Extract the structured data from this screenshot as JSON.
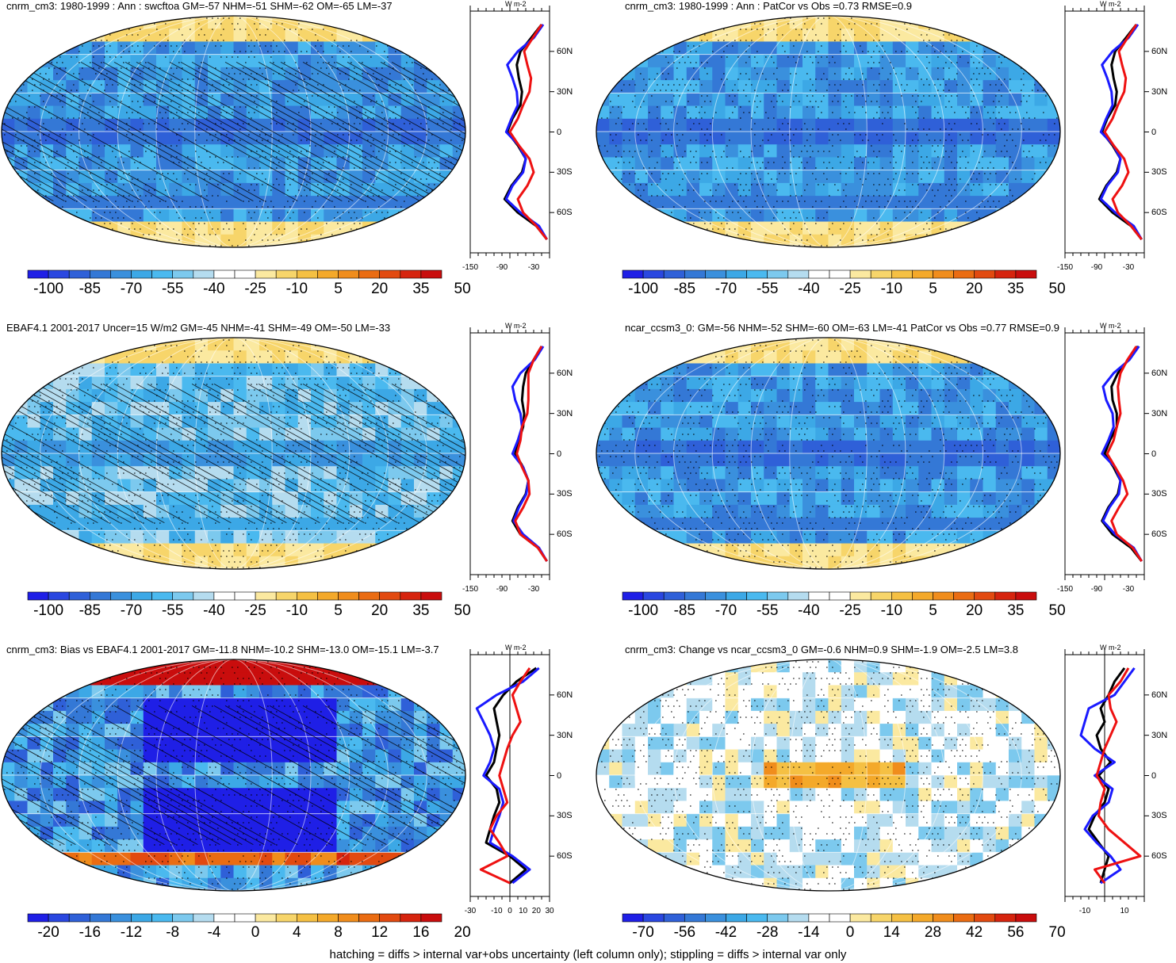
{
  "footnote": "hatching = diffs > internal var+obs uncertainty (left column only); stippling = diffs > internal var only",
  "colors": {
    "palette_neg": [
      "#1f1fe6",
      "#2a47e0",
      "#2f60d8",
      "#3478d6",
      "#3a90dd",
      "#3ca8e6",
      "#4ab9ef",
      "#7cc9ee",
      "#b5dcef"
    ],
    "white": "#ffffff",
    "palette_pos": [
      "#fbe9a0",
      "#f7d56a",
      "#f5c043",
      "#f4a92a",
      "#f08d1c",
      "#ea6c12",
      "#e24a10",
      "#d6240e",
      "#c90d0d"
    ],
    "model_line": "#000000",
    "obs_line": "#1a1aff",
    "diff_line": "#ee1111"
  },
  "panels": [
    {
      "title": "cnrm_cm3: 1980-1999 : Ann : swcftoa GM=-57 NHM=-51 SHM=-62 OM=-65 LM=-37",
      "colorbar_labels": [
        "-100",
        "-85",
        "-70",
        "-55",
        "-40",
        "-25",
        "-10",
        "5",
        "20",
        "35",
        "50"
      ],
      "profile_unit": "W m-2",
      "profile_xticks": [
        "-150",
        "-90",
        "-30"
      ],
      "profile_yticks": [
        "60N",
        "30N",
        "0",
        "30S",
        "60S"
      ],
      "map_tone": "neg-strong",
      "hatched": true
    },
    {
      "title": "cnrm_cm3: 1980-1999 : Ann : PatCor vs Obs =0.73 RMSE=0.9",
      "colorbar_labels": [
        "-100",
        "-85",
        "-70",
        "-55",
        "-40",
        "-25",
        "-10",
        "5",
        "20",
        "35",
        "50"
      ],
      "profile_unit": "W m-2",
      "profile_xticks": [
        "-150",
        "-90",
        "-30"
      ],
      "profile_yticks": [
        "60N",
        "30N",
        "0",
        "30S",
        "60S"
      ],
      "map_tone": "neg-strong",
      "hatched": false
    },
    {
      "title": "EBAF4.1 2001-2017 Uncer=15 W/m2 GM=-45 NHM=-41 SHM=-49 OM=-50 LM=-33",
      "colorbar_labels": [
        "-100",
        "-85",
        "-70",
        "-55",
        "-40",
        "-25",
        "-10",
        "5",
        "20",
        "35",
        "50"
      ],
      "profile_unit": "W m-2",
      "profile_xticks": [
        "-150",
        "-90",
        "-30"
      ],
      "profile_yticks": [
        "60N",
        "30N",
        "0",
        "30S",
        "60S"
      ],
      "map_tone": "neg-mid",
      "hatched": true
    },
    {
      "title": "ncar_ccsm3_0: GM=-56 NHM=-52 SHM=-60 OM=-63 LM=-41 PatCor vs Obs =0.77 RMSE=0.9",
      "colorbar_labels": [
        "-100",
        "-85",
        "-70",
        "-55",
        "-40",
        "-25",
        "-10",
        "5",
        "20",
        "35",
        "50"
      ],
      "profile_unit": "W m-2",
      "profile_xticks": [
        "-150",
        "-90",
        "-30"
      ],
      "profile_yticks": [
        "60N",
        "30N",
        "0",
        "30S",
        "60S"
      ],
      "map_tone": "neg-strong",
      "hatched": false
    },
    {
      "title": "cnrm_cm3: Bias vs EBAF4.1 2001-2017 GM=-11.8 NHM=-10.2 SHM=-13.0 OM=-15.1 LM=-3.7",
      "colorbar_labels": [
        "-20",
        "-16",
        "-12",
        "-8",
        "-4",
        "0",
        "4",
        "8",
        "12",
        "16",
        "20"
      ],
      "profile_unit": "W m-2",
      "profile_xticks": [
        "-30",
        "-10",
        "0",
        "10",
        "20",
        "30"
      ],
      "profile_yticks": [
        "60N",
        "30N",
        "0",
        "30S",
        "60S"
      ],
      "map_tone": "bias",
      "hatched": true
    },
    {
      "title": "cnrm_cm3: Change vs ncar_ccsm3_0 GM=-0.6 NHM=0.9 SHM=-1.9 OM=-2.5 LM=3.8",
      "colorbar_labels": [
        "-70",
        "-56",
        "-42",
        "-28",
        "-14",
        "0",
        "14",
        "28",
        "42",
        "56",
        "70"
      ],
      "profile_unit": "W m-2",
      "profile_xticks": [
        "-10",
        "10"
      ],
      "profile_yticks": [
        "60N",
        "30N",
        "0",
        "30S",
        "60S"
      ],
      "map_tone": "change",
      "hatched": false
    }
  ],
  "chart_data": {
    "type": "heatmap",
    "variable": "swcftoa",
    "season": "Ann",
    "panels": [
      {
        "name": "cnrm_cm3 1980-1999",
        "GM": -57,
        "NHM": -51,
        "SHM": -62,
        "OM": -65,
        "LM": -37
      },
      {
        "name": "cnrm_cm3 1980-1999 PatCor vs Obs",
        "PatCor": 0.73,
        "RMSE": 0.9
      },
      {
        "name": "EBAF4.1 2001-2017",
        "Uncer": 15,
        "GM": -45,
        "NHM": -41,
        "SHM": -49,
        "OM": -50,
        "LM": -33
      },
      {
        "name": "ncar_ccsm3_0",
        "GM": -56,
        "NHM": -52,
        "SHM": -60,
        "OM": -63,
        "LM": -41,
        "PatCor": 0.77,
        "RMSE": 0.9
      },
      {
        "name": "cnrm_cm3 Bias vs EBAF4.1 2001-2017",
        "GM": -11.8,
        "NHM": -10.2,
        "SHM": -13.0,
        "OM": -15.1,
        "LM": -3.7
      },
      {
        "name": "cnrm_cm3 Change vs ncar_ccsm3_0",
        "GM": -0.6,
        "NHM": 0.9,
        "SHM": -1.9,
        "OM": -2.5,
        "LM": 3.8
      }
    ],
    "zonal_profiles": {
      "lat": [
        80,
        70,
        60,
        50,
        40,
        30,
        20,
        10,
        0,
        -10,
        -20,
        -30,
        -40,
        -50,
        -60,
        -70,
        -80
      ],
      "panels": [
        {
          "series": [
            {
              "color": "black",
              "values": [
                -15,
                -35,
                -55,
                -62,
                -58,
                -52,
                -55,
                -70,
                -80,
                -60,
                -45,
                -52,
                -72,
                -85,
                -60,
                -25,
                -5
              ]
            },
            {
              "color": "blue",
              "values": [
                -12,
                -30,
                -60,
                -80,
                -70,
                -62,
                -60,
                -72,
                -82,
                -58,
                -45,
                -50,
                -70,
                -82,
                -55,
                -20,
                -5
              ]
            },
            {
              "color": "red",
              "values": [
                -15,
                -32,
                -48,
                -42,
                -35,
                -38,
                -50,
                -60,
                -75,
                -58,
                -38,
                -30,
                -42,
                -60,
                -50,
                -25,
                -5
              ]
            }
          ]
        },
        {
          "series": [
            {
              "color": "black",
              "values": [
                -15,
                -35,
                -55,
                -62,
                -58,
                -52,
                -55,
                -70,
                -80,
                -60,
                -45,
                -52,
                -72,
                -85,
                -60,
                -25,
                -5
              ]
            },
            {
              "color": "blue",
              "values": [
                -12,
                -30,
                -60,
                -80,
                -70,
                -62,
                -60,
                -72,
                -82,
                -58,
                -45,
                -50,
                -70,
                -82,
                -55,
                -20,
                -5
              ]
            },
            {
              "color": "red",
              "values": [
                -15,
                -32,
                -48,
                -42,
                -35,
                -38,
                -50,
                -60,
                -75,
                -58,
                -38,
                -30,
                -42,
                -60,
                -50,
                -25,
                -5
              ]
            }
          ]
        },
        {
          "series": [
            {
              "color": "black",
              "values": [
                -15,
                -30,
                -45,
                -50,
                -52,
                -48,
                -50,
                -58,
                -65,
                -50,
                -40,
                -45,
                -60,
                -70,
                -55,
                -22,
                -5
              ]
            },
            {
              "color": "blue",
              "values": [
                -12,
                -28,
                -55,
                -70,
                -65,
                -55,
                -52,
                -60,
                -70,
                -50,
                -40,
                -44,
                -58,
                -68,
                -50,
                -20,
                -5
              ]
            },
            {
              "color": "red",
              "values": [
                -15,
                -30,
                -40,
                -40,
                -40,
                -42,
                -52,
                -55,
                -62,
                -52,
                -40,
                -38,
                -50,
                -65,
                -55,
                -22,
                -5
              ]
            }
          ]
        },
        {
          "series": [
            {
              "color": "black",
              "values": [
                -12,
                -30,
                -50,
                -62,
                -60,
                -52,
                -52,
                -65,
                -75,
                -58,
                -45,
                -50,
                -68,
                -80,
                -60,
                -25,
                -5
              ]
            },
            {
              "color": "blue",
              "values": [
                -10,
                -28,
                -58,
                -78,
                -72,
                -60,
                -58,
                -68,
                -80,
                -55,
                -45,
                -48,
                -66,
                -78,
                -55,
                -20,
                -5
              ]
            },
            {
              "color": "red",
              "values": [
                -15,
                -32,
                -45,
                -50,
                -48,
                -45,
                -52,
                -58,
                -70,
                -55,
                -40,
                -32,
                -48,
                -62,
                -52,
                -22,
                -5
              ]
            }
          ]
        },
        {
          "series": [
            {
              "color": "black",
              "values": [
                20,
                5,
                -5,
                -12,
                -10,
                -8,
                -10,
                -12,
                -18,
                -10,
                -8,
                -12,
                -15,
                -18,
                0,
                12,
                0
              ]
            },
            {
              "color": "blue",
              "values": [
                22,
                10,
                -10,
                -25,
                -20,
                -15,
                -12,
                -15,
                -20,
                -8,
                -5,
                -8,
                -12,
                -15,
                2,
                15,
                2
              ]
            },
            {
              "color": "red",
              "values": [
                15,
                8,
                2,
                5,
                8,
                2,
                -2,
                -5,
                -8,
                -5,
                -2,
                -10,
                -15,
                -8,
                -2,
                -22,
                0
              ]
            }
          ]
        },
        {
          "series": [
            {
              "color": "black",
              "values": [
                10,
                5,
                2,
                -2,
                0,
                -4,
                -2,
                3,
                -3,
                2,
                0,
                -5,
                -8,
                -3,
                2,
                0,
                -2
              ]
            },
            {
              "color": "blue",
              "values": [
                15,
                10,
                5,
                -8,
                -10,
                -12,
                -5,
                5,
                -5,
                4,
                2,
                -6,
                -10,
                -4,
                3,
                8,
                -2
              ]
            },
            {
              "color": "red",
              "values": [
                12,
                8,
                2,
                3,
                6,
                3,
                0,
                -2,
                -4,
                0,
                -2,
                -3,
                2,
                10,
                18,
                -5,
                0
              ]
            }
          ]
        }
      ]
    }
  }
}
